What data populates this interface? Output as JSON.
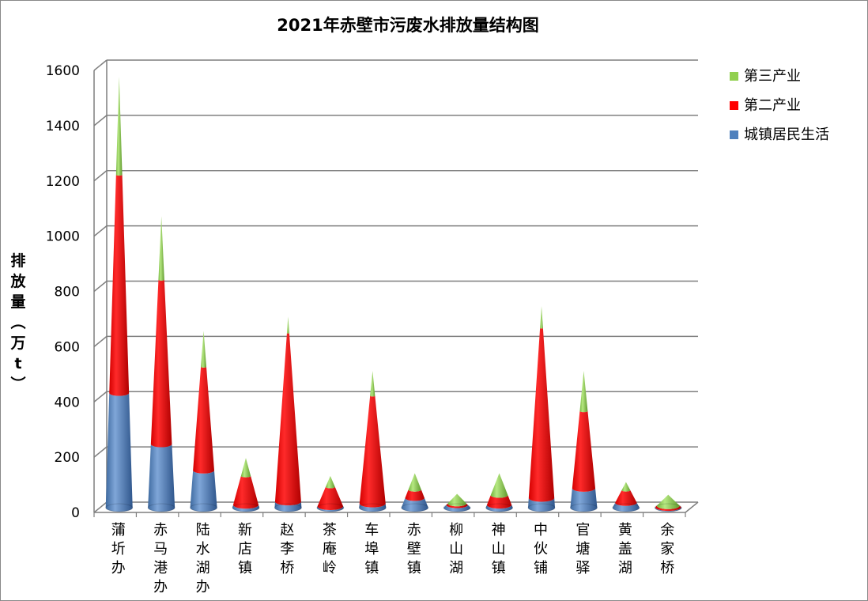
{
  "chart_data": {
    "type": "bar",
    "style": "stacked 3D cone",
    "title": "2021年赤壁市污废水排放量结构图",
    "ylabel": "排放量（万t）",
    "ylim": [
      0,
      1600
    ],
    "yticks": [
      "0",
      "200",
      "400",
      "600",
      "800",
      "1000",
      "1200",
      "1400",
      "1600"
    ],
    "grid": true,
    "legend_position": "right",
    "categories": [
      "蒲圻办",
      "赤马港办",
      "陆水湖办",
      "新店镇",
      "赵李桥",
      "茶庵岭",
      "车埠镇",
      "赤壁镇",
      "柳山湖",
      "神山镇",
      "中伙铺",
      "官塘驿",
      "黄盖湖",
      "余家桥"
    ],
    "series": [
      {
        "name": "城镇居民生活",
        "color": "#4F81BD",
        "values": [
          415,
          230,
          135,
          10,
          22,
          5,
          15,
          35,
          10,
          10,
          35,
          70,
          18,
          2
        ]
      },
      {
        "name": "第二产业",
        "color": "#FF0000",
        "values": [
          790,
          595,
          375,
          105,
          610,
          70,
          390,
          30,
          5,
          35,
          615,
          280,
          45,
          5
        ]
      },
      {
        "name": "第三产业",
        "color": "#92D050",
        "values": [
          355,
          230,
          130,
          65,
          60,
          40,
          90,
          60,
          35,
          80,
          80,
          145,
          30,
          40
        ]
      }
    ]
  }
}
